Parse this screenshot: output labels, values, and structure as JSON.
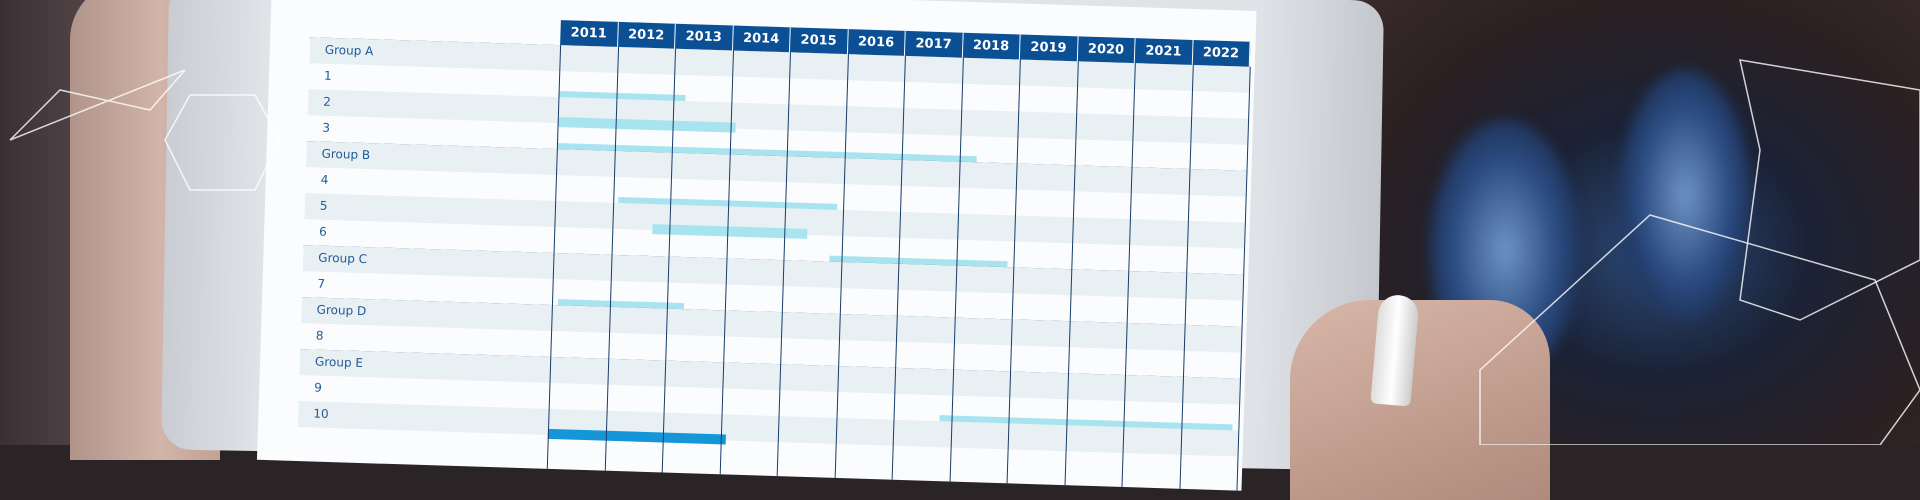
{
  "chart_data": {
    "type": "gantt",
    "categories": [
      "2011",
      "2012",
      "2013",
      "2014",
      "2015",
      "2016",
      "2017",
      "2018",
      "2019",
      "2020",
      "2021",
      "2022"
    ],
    "groups": [
      {
        "label": "Group A",
        "items": [
          {
            "label": "1",
            "start": 2011,
            "end": 2013.2
          },
          {
            "label": "2",
            "start": 2011,
            "end": 2014.1
          },
          {
            "label": "3",
            "start": 2011,
            "end": 2018.3
          }
        ]
      },
      {
        "label": "Group B",
        "items": [
          {
            "label": "4",
            "start": 2012.1,
            "end": 2015.9
          },
          {
            "label": "5",
            "start": 2012.7,
            "end": 2015.4
          },
          {
            "label": "6",
            "start": 2015.8,
            "end": 2018.9
          }
        ]
      },
      {
        "label": "Group C",
        "items": [
          {
            "label": "7",
            "start": 2011.1,
            "end": 2013.3
          }
        ]
      },
      {
        "label": "Group D",
        "items": [
          {
            "label": "8"
          }
        ]
      },
      {
        "label": "Group E",
        "items": [
          {
            "label": "9",
            "start": 2017.8,
            "end": 2022.9
          },
          {
            "label": "10",
            "start": 2011,
            "end": 2014.1,
            "highlight": true
          }
        ]
      }
    ],
    "colors": {
      "header": "#0b4f94",
      "bar": "#a8e3f0",
      "highlight_bar": "#1596d8",
      "text": "#1f5a96"
    }
  }
}
